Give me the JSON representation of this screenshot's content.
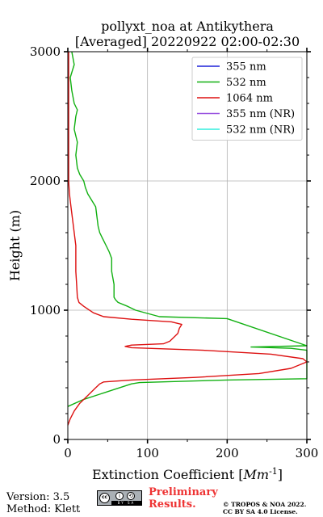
{
  "chart_data": {
    "type": "line",
    "title_line1": "pollyxt_noa at Antikythera",
    "title_line2": "[Averaged] 20220922 02:00-02:30",
    "xlabel": "Extinction Coefficient [$Mm^{-1}$]",
    "ylabel": "Height (m)",
    "xlim": [
      0,
      300
    ],
    "ylim": [
      0,
      3000
    ],
    "xticks": [
      0,
      100,
      200,
      300
    ],
    "yticks": [
      0,
      1000,
      2000,
      3000
    ],
    "grid": true,
    "legend_position": "top-right",
    "series": [
      {
        "name": "355 nm",
        "color": "#1f22d8",
        "points": []
      },
      {
        "name": "532 nm",
        "color": "#11b011",
        "points": [
          [
            0,
            255
          ],
          [
            20,
            310
          ],
          [
            40,
            350
          ],
          [
            60,
            390
          ],
          [
            80,
            430
          ],
          [
            90,
            440
          ],
          [
            200,
            460
          ],
          [
            300,
            470
          ],
          [
            310,
            480
          ],
          [
            330,
            500
          ],
          [
            330,
            580
          ],
          [
            305,
            690
          ],
          [
            280,
            705
          ],
          [
            230,
            715
          ],
          [
            300,
            725
          ],
          [
            200,
            935
          ],
          [
            115,
            950
          ],
          [
            100,
            975
          ],
          [
            85,
            1000
          ],
          [
            75,
            1030
          ],
          [
            63,
            1060
          ],
          [
            60,
            1080
          ],
          [
            58,
            1100
          ],
          [
            58,
            1200
          ],
          [
            55,
            1300
          ],
          [
            55,
            1400
          ],
          [
            52,
            1450
          ],
          [
            48,
            1500
          ],
          [
            44,
            1550
          ],
          [
            40,
            1600
          ],
          [
            38,
            1650
          ],
          [
            37,
            1700
          ],
          [
            36,
            1750
          ],
          [
            35,
            1800
          ],
          [
            30,
            1850
          ],
          [
            25,
            1900
          ],
          [
            22,
            1950
          ],
          [
            20,
            2000
          ],
          [
            15,
            2050
          ],
          [
            12,
            2100
          ],
          [
            10,
            2200
          ],
          [
            12,
            2300
          ],
          [
            8,
            2400
          ],
          [
            10,
            2500
          ],
          [
            12,
            2550
          ],
          [
            8,
            2600
          ],
          [
            5,
            2700
          ],
          [
            3,
            2800
          ],
          [
            8,
            2900
          ],
          [
            5,
            3000
          ]
        ]
      },
      {
        "name": "1064 nm",
        "color": "#dd1111",
        "points": [
          [
            0,
            110
          ],
          [
            3,
            160
          ],
          [
            8,
            220
          ],
          [
            15,
            280
          ],
          [
            25,
            340
          ],
          [
            35,
            400
          ],
          [
            40,
            430
          ],
          [
            45,
            445
          ],
          [
            80,
            460
          ],
          [
            160,
            480
          ],
          [
            240,
            510
          ],
          [
            280,
            550
          ],
          [
            300,
            600
          ],
          [
            295,
            625
          ],
          [
            255,
            660
          ],
          [
            170,
            690
          ],
          [
            80,
            710
          ],
          [
            72,
            720
          ],
          [
            80,
            730
          ],
          [
            120,
            740
          ],
          [
            128,
            760
          ],
          [
            133,
            790
          ],
          [
            138,
            820
          ],
          [
            140,
            860
          ],
          [
            143,
            890
          ],
          [
            130,
            910
          ],
          [
            80,
            930
          ],
          [
            45,
            950
          ],
          [
            32,
            980
          ],
          [
            20,
            1030
          ],
          [
            14,
            1060
          ],
          [
            12,
            1100
          ],
          [
            11,
            1200
          ],
          [
            10,
            1300
          ],
          [
            10,
            1400
          ],
          [
            10,
            1500
          ],
          [
            8,
            1600
          ],
          [
            6,
            1700
          ],
          [
            4,
            1800
          ],
          [
            2,
            1900
          ],
          [
            1,
            2000
          ],
          [
            1,
            2200
          ],
          [
            1,
            2400
          ],
          [
            1,
            2600
          ],
          [
            1,
            2800
          ],
          [
            1,
            3000
          ]
        ]
      },
      {
        "name": "355 nm (NR)",
        "color": "#9a55e0",
        "points": []
      },
      {
        "name": "532 nm (NR)",
        "color": "#33eedd",
        "points": []
      }
    ]
  },
  "footer": {
    "version": "Version: 3.5",
    "method": "Method: Klett",
    "preliminary_line1": "Preliminary",
    "preliminary_line2": "Results.",
    "copyright_line1": "© TROPOS & NOA 2022.",
    "copyright_line2": "CC BY SA 4.0 License.",
    "license_badge": {
      "cc": "cc",
      "by": "i",
      "sa": "⟲",
      "strip": "BY SA"
    }
  }
}
